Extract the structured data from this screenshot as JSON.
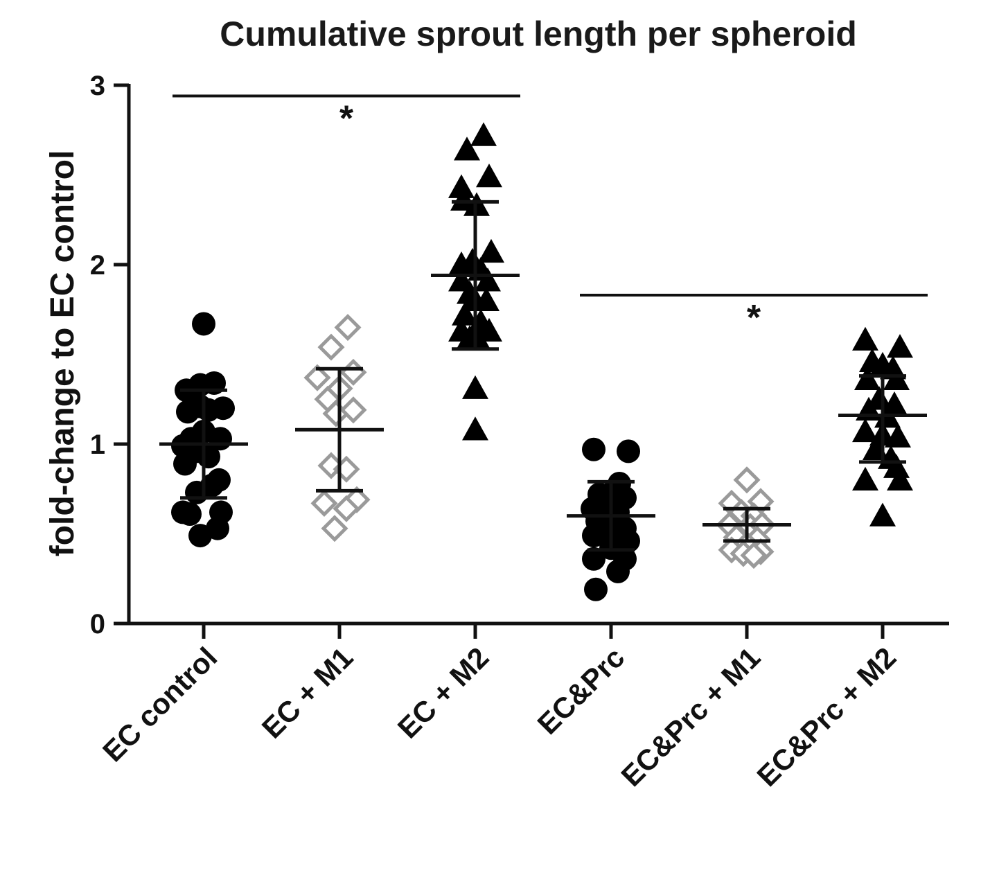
{
  "chart_data": {
    "type": "scatter",
    "title": "Cumulative sprout length per spheroid",
    "xlabel": "",
    "ylabel": "fold-change to EC control",
    "ylim": [
      0,
      3
    ],
    "yticks": [
      "0",
      "1",
      "2",
      "3"
    ],
    "categories": [
      "EC control",
      "EC + M1",
      "EC + M2",
      "EC&Prc",
      "EC&Prc + M1",
      "EC&Prc + M2"
    ],
    "colors": {
      "black": "#000000",
      "gray": "#9a9a9a"
    },
    "groups": [
      {
        "name": "EC control",
        "marker": "circle",
        "color": "#000000",
        "mean": 1.0,
        "sd_low": 0.7,
        "sd_high": 1.3,
        "points": [
          [
            0,
            1.67
          ],
          [
            -0.25,
            1.3
          ],
          [
            -0.05,
            1.33
          ],
          [
            0.15,
            1.34
          ],
          [
            0.28,
            1.2
          ],
          [
            -0.23,
            1.18
          ],
          [
            -0.05,
            1.21
          ],
          [
            0.07,
            1.19
          ],
          [
            -0.18,
            1.03
          ],
          [
            0.0,
            1.07
          ],
          [
            0.24,
            1.03
          ],
          [
            -0.3,
            0.99
          ],
          [
            -0.1,
            0.96
          ],
          [
            0.07,
            0.93
          ],
          [
            0.22,
            0.8
          ],
          [
            -0.27,
            0.89
          ],
          [
            0.12,
            0.77
          ],
          [
            -0.1,
            0.73
          ],
          [
            -0.2,
            0.61
          ],
          [
            0.25,
            0.62
          ],
          [
            -0.3,
            0.62
          ],
          [
            -0.05,
            0.49
          ],
          [
            0.2,
            0.53
          ]
        ]
      },
      {
        "name": "EC + M1",
        "marker": "diamond-open",
        "color": "#9a9a9a",
        "mean": 1.08,
        "sd_low": 0.74,
        "sd_high": 1.42,
        "points": [
          [
            0.12,
            1.65
          ],
          [
            -0.12,
            1.54
          ],
          [
            -0.32,
            1.37
          ],
          [
            0.2,
            1.4
          ],
          [
            -0.17,
            1.25
          ],
          [
            0.0,
            1.31
          ],
          [
            -0.05,
            1.17
          ],
          [
            0.2,
            1.19
          ],
          [
            -0.12,
            0.88
          ],
          [
            0.1,
            0.86
          ],
          [
            -0.22,
            0.67
          ],
          [
            0.25,
            0.69
          ],
          [
            0.1,
            0.64
          ],
          [
            -0.07,
            0.53
          ]
        ]
      },
      {
        "name": "EC + M2",
        "marker": "triangle",
        "color": "#000000",
        "mean": 1.94,
        "sd_low": 1.53,
        "sd_high": 2.35,
        "points": [
          [
            0.12,
            2.72
          ],
          [
            -0.12,
            2.64
          ],
          [
            0.2,
            2.49
          ],
          [
            -0.2,
            2.43
          ],
          [
            -0.17,
            2.36
          ],
          [
            0.02,
            2.33
          ],
          [
            0.23,
            2.07
          ],
          [
            -0.2,
            2.0
          ],
          [
            -0.04,
            2.02
          ],
          [
            0.08,
            1.97
          ],
          [
            -0.2,
            1.91
          ],
          [
            0.18,
            1.91
          ],
          [
            -0.08,
            1.84
          ],
          [
            0.0,
            1.8
          ],
          [
            0.16,
            1.8
          ],
          [
            -0.15,
            1.72
          ],
          [
            0.08,
            1.68
          ],
          [
            -0.2,
            1.63
          ],
          [
            0.2,
            1.63
          ],
          [
            -0.08,
            1.59
          ],
          [
            0.04,
            1.58
          ],
          [
            0.0,
            1.31
          ],
          [
            0.0,
            1.08
          ]
        ]
      },
      {
        "name": "EC&Prc",
        "marker": "circle",
        "color": "#000000",
        "mean": 0.6,
        "sd_low": 0.41,
        "sd_high": 0.79,
        "points": [
          [
            -0.25,
            0.97
          ],
          [
            0.25,
            0.96
          ],
          [
            0.12,
            0.78
          ],
          [
            -0.17,
            0.72
          ],
          [
            0.02,
            0.73
          ],
          [
            0.2,
            0.7
          ],
          [
            -0.27,
            0.64
          ],
          [
            -0.08,
            0.67
          ],
          [
            0.1,
            0.62
          ],
          [
            -0.2,
            0.57
          ],
          [
            0.2,
            0.53
          ],
          [
            -0.05,
            0.55
          ],
          [
            -0.25,
            0.49
          ],
          [
            0.05,
            0.46
          ],
          [
            0.25,
            0.46
          ],
          [
            -0.25,
            0.36
          ],
          [
            0.2,
            0.36
          ],
          [
            0.1,
            0.29
          ],
          [
            -0.22,
            0.19
          ],
          [
            0.0,
            0.42
          ]
        ]
      },
      {
        "name": "EC&Prc + M1",
        "marker": "diamond-open",
        "color": "#9a9a9a",
        "mean": 0.55,
        "sd_low": 0.46,
        "sd_high": 0.64,
        "points": [
          [
            0.0,
            0.8
          ],
          [
            -0.22,
            0.67
          ],
          [
            0.2,
            0.68
          ],
          [
            -0.08,
            0.62
          ],
          [
            0.1,
            0.6
          ],
          [
            -0.25,
            0.55
          ],
          [
            0.05,
            0.54
          ],
          [
            0.22,
            0.55
          ],
          [
            -0.15,
            0.48
          ],
          [
            0.15,
            0.47
          ],
          [
            0.0,
            0.44
          ],
          [
            -0.22,
            0.41
          ],
          [
            0.2,
            0.4
          ],
          [
            -0.05,
            0.39
          ],
          [
            0.1,
            0.38
          ]
        ]
      },
      {
        "name": "EC&Prc + M2",
        "marker": "triangle",
        "color": "#000000",
        "mean": 1.16,
        "sd_low": 0.9,
        "sd_high": 1.38,
        "points": [
          [
            -0.25,
            1.58
          ],
          [
            0.25,
            1.54
          ],
          [
            -0.15,
            1.46
          ],
          [
            0.0,
            1.44
          ],
          [
            0.15,
            1.42
          ],
          [
            -0.22,
            1.36
          ],
          [
            0.2,
            1.36
          ],
          [
            -0.05,
            1.25
          ],
          [
            0.17,
            1.22
          ],
          [
            -0.2,
            1.19
          ],
          [
            0.07,
            1.15
          ],
          [
            -0.25,
            1.07
          ],
          [
            0.0,
            1.05
          ],
          [
            0.22,
            1.04
          ],
          [
            -0.1,
            0.97
          ],
          [
            0.12,
            0.92
          ],
          [
            0.2,
            0.87
          ],
          [
            -0.25,
            0.8
          ],
          [
            0.25,
            0.8
          ],
          [
            0.0,
            0.6
          ]
        ]
      }
    ],
    "significance": [
      {
        "from": "EC control",
        "to": "EC + M2",
        "y": 2.94,
        "label": "*"
      },
      {
        "from": "EC&Prc",
        "to": "EC&Prc + M2",
        "y": 1.83,
        "label": "*"
      }
    ]
  }
}
